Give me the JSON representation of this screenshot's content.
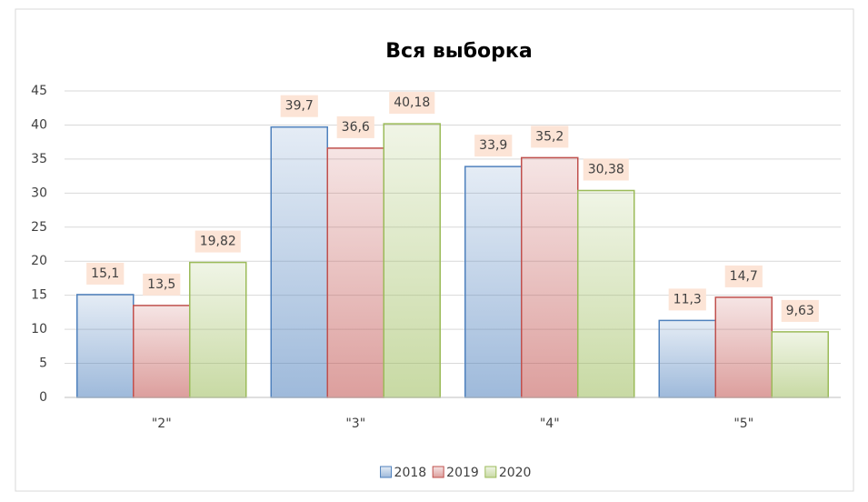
{
  "chart_data": {
    "type": "bar",
    "title": "Вся выборка",
    "categories": [
      "\"2\"",
      "\"3\"",
      "\"4\"",
      "\"5\""
    ],
    "series": [
      {
        "name": "2018",
        "color": "#4f81bd",
        "values": [
          15.1,
          39.7,
          33.9,
          11.3
        ],
        "value_labels": [
          "15,1",
          "39,7",
          "33,9",
          "11,3"
        ]
      },
      {
        "name": "2019",
        "color": "#c0504d",
        "values": [
          13.5,
          36.6,
          35.2,
          14.7
        ],
        "value_labels": [
          "13,5",
          "36,6",
          "35,2",
          "14,7"
        ]
      },
      {
        "name": "2020",
        "color": "#9bbb59",
        "values": [
          19.82,
          40.18,
          30.38,
          9.63
        ],
        "value_labels": [
          "19,82",
          "40,18",
          "30,38",
          "9,63"
        ]
      }
    ],
    "ylim": [
      0,
      45
    ],
    "yticks": [
      0,
      5,
      10,
      15,
      20,
      25,
      30,
      35,
      40,
      45
    ],
    "grid": true,
    "legend": "bottom"
  }
}
